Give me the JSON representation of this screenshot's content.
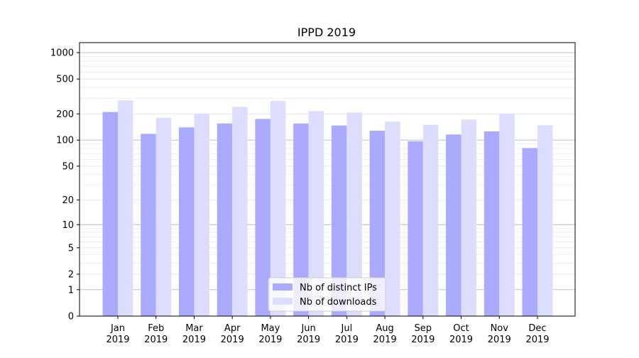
{
  "chart_data": {
    "type": "bar",
    "title": "IPPD 2019",
    "xlabel": "",
    "ylabel": "",
    "yscale": "symlog",
    "ylim": [
      0,
      1300
    ],
    "yticks": [
      0,
      1,
      2,
      5,
      10,
      20,
      50,
      100,
      200,
      500,
      1000
    ],
    "ytick_labels": [
      "0",
      "1",
      "2",
      "5",
      "10",
      "20",
      "50",
      "100",
      "200",
      "500",
      "1000"
    ],
    "categories": [
      "Jan\n2019",
      "Feb\n2019",
      "Mar\n2019",
      "Apr\n2019",
      "May\n2019",
      "Jun\n2019",
      "Jul\n2019",
      "Aug\n2019",
      "Sep\n2019",
      "Oct\n2019",
      "Nov\n2019",
      "Dec\n2019"
    ],
    "series": [
      {
        "name": "Nb of distinct IPs",
        "color": "#aaaaff",
        "values": [
          210,
          118,
          140,
          155,
          175,
          155,
          147,
          128,
          97,
          116,
          126,
          81
        ]
      },
      {
        "name": "Nb of downloads",
        "color": "#ddddff",
        "values": [
          285,
          180,
          200,
          240,
          280,
          215,
          207,
          163,
          150,
          172,
          200,
          148
        ]
      }
    ],
    "grid": true,
    "legend_position": "lower center"
  }
}
